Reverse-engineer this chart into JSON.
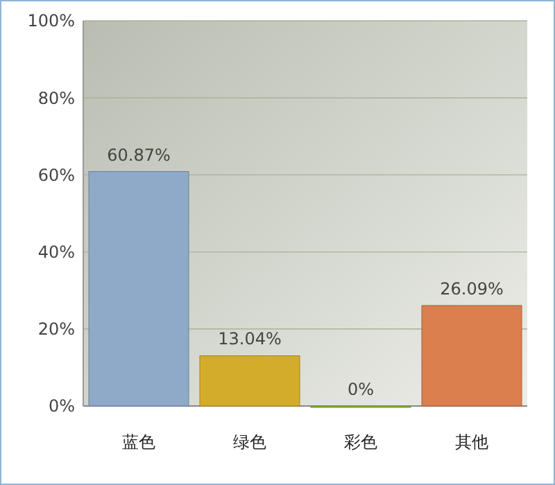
{
  "chart_data": {
    "type": "bar",
    "categories": [
      "蓝色",
      "绿色",
      "彩色",
      "其他"
    ],
    "values": [
      60.87,
      13.04,
      0,
      26.09
    ],
    "colors": [
      "#8fa9c8",
      "#d4ac2c",
      "#8cbc3c",
      "#d9804e"
    ],
    "value_labels": [
      "60.87%",
      "13.04%",
      "0%",
      "26.09%"
    ],
    "ylim": [
      0,
      100
    ],
    "yticks": [
      {
        "value": 0,
        "label": "0%"
      },
      {
        "value": 20,
        "label": "20%"
      },
      {
        "value": 40,
        "label": "40%"
      },
      {
        "value": 60,
        "label": "60%"
      },
      {
        "value": 80,
        "label": "80%"
      },
      {
        "value": 100,
        "label": "100%"
      }
    ],
    "grid": "y"
  }
}
